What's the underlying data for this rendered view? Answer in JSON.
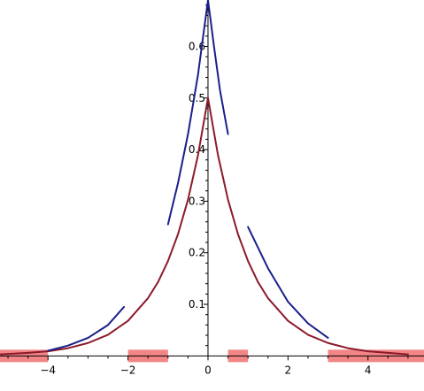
{
  "chart_data": {
    "type": "line",
    "title": "",
    "xlabel": "",
    "ylabel": "",
    "xlim": [
      -5.2,
      5.4
    ],
    "ylim": [
      -0.02,
      0.69
    ],
    "grid": false,
    "x_ticks": [
      {
        "value": -4,
        "label": "−4"
      },
      {
        "value": -2,
        "label": "−2"
      },
      {
        "value": 0,
        "label": "0"
      },
      {
        "value": 2,
        "label": "2"
      },
      {
        "value": 4,
        "label": "4"
      }
    ],
    "y_ticks": [
      {
        "value": 0.1,
        "label": "0.1"
      },
      {
        "value": 0.2,
        "label": "0.2"
      },
      {
        "value": 0.3,
        "label": "0.3"
      },
      {
        "value": 0.4,
        "label": "0.4"
      },
      {
        "value": 0.5,
        "label": "0.5"
      },
      {
        "value": 0.6,
        "label": "0.6"
      }
    ],
    "series": [
      {
        "color": "#8b1a2b",
        "x": [
          -5.2,
          -4.5,
          -4,
          -3.5,
          -3,
          -2.5,
          -2,
          -1.5,
          -1.25,
          -1,
          -0.75,
          -0.5,
          -0.25,
          0,
          0.25,
          0.5,
          0.75,
          1,
          1.25,
          1.5,
          2,
          2.5,
          3,
          3.5,
          4,
          4.5,
          5.0
        ],
        "y": [
          0.003,
          0.006,
          0.009,
          0.015,
          0.025,
          0.041,
          0.068,
          0.112,
          0.143,
          0.184,
          0.236,
          0.303,
          0.389,
          0.5,
          0.389,
          0.303,
          0.236,
          0.184,
          0.143,
          0.112,
          0.068,
          0.041,
          0.025,
          0.015,
          0.009,
          0.006,
          0.003
        ]
      },
      {
        "color": "#1c1f8a",
        "segments": [
          {
            "x": [
              -4,
              -3.5,
              -3,
              -2.5,
              -2.1
            ],
            "y": [
              0.01,
              0.02,
              0.035,
              0.06,
              0.095
            ]
          },
          {
            "x": [
              -1,
              -0.75,
              -0.5,
              -0.25,
              0
            ],
            "y": [
              0.255,
              0.335,
              0.43,
              0.545,
              0.69
            ]
          },
          {
            "x": [
              0,
              0.15,
              0.3,
              0.5
            ],
            "y": [
              0.69,
              0.6,
              0.515,
              0.43
            ]
          },
          {
            "x": [
              1,
              1.5,
              2,
              2.5,
              3
            ],
            "y": [
              0.25,
              0.17,
              0.105,
              0.063,
              0.035
            ]
          }
        ]
      }
    ],
    "highlighted_x_intervals": {
      "color": "#f07070",
      "intervals": [
        [
          -5.2,
          -4
        ],
        [
          -2,
          -1
        ],
        [
          0.5,
          1
        ],
        [
          3,
          5.4
        ]
      ]
    }
  }
}
